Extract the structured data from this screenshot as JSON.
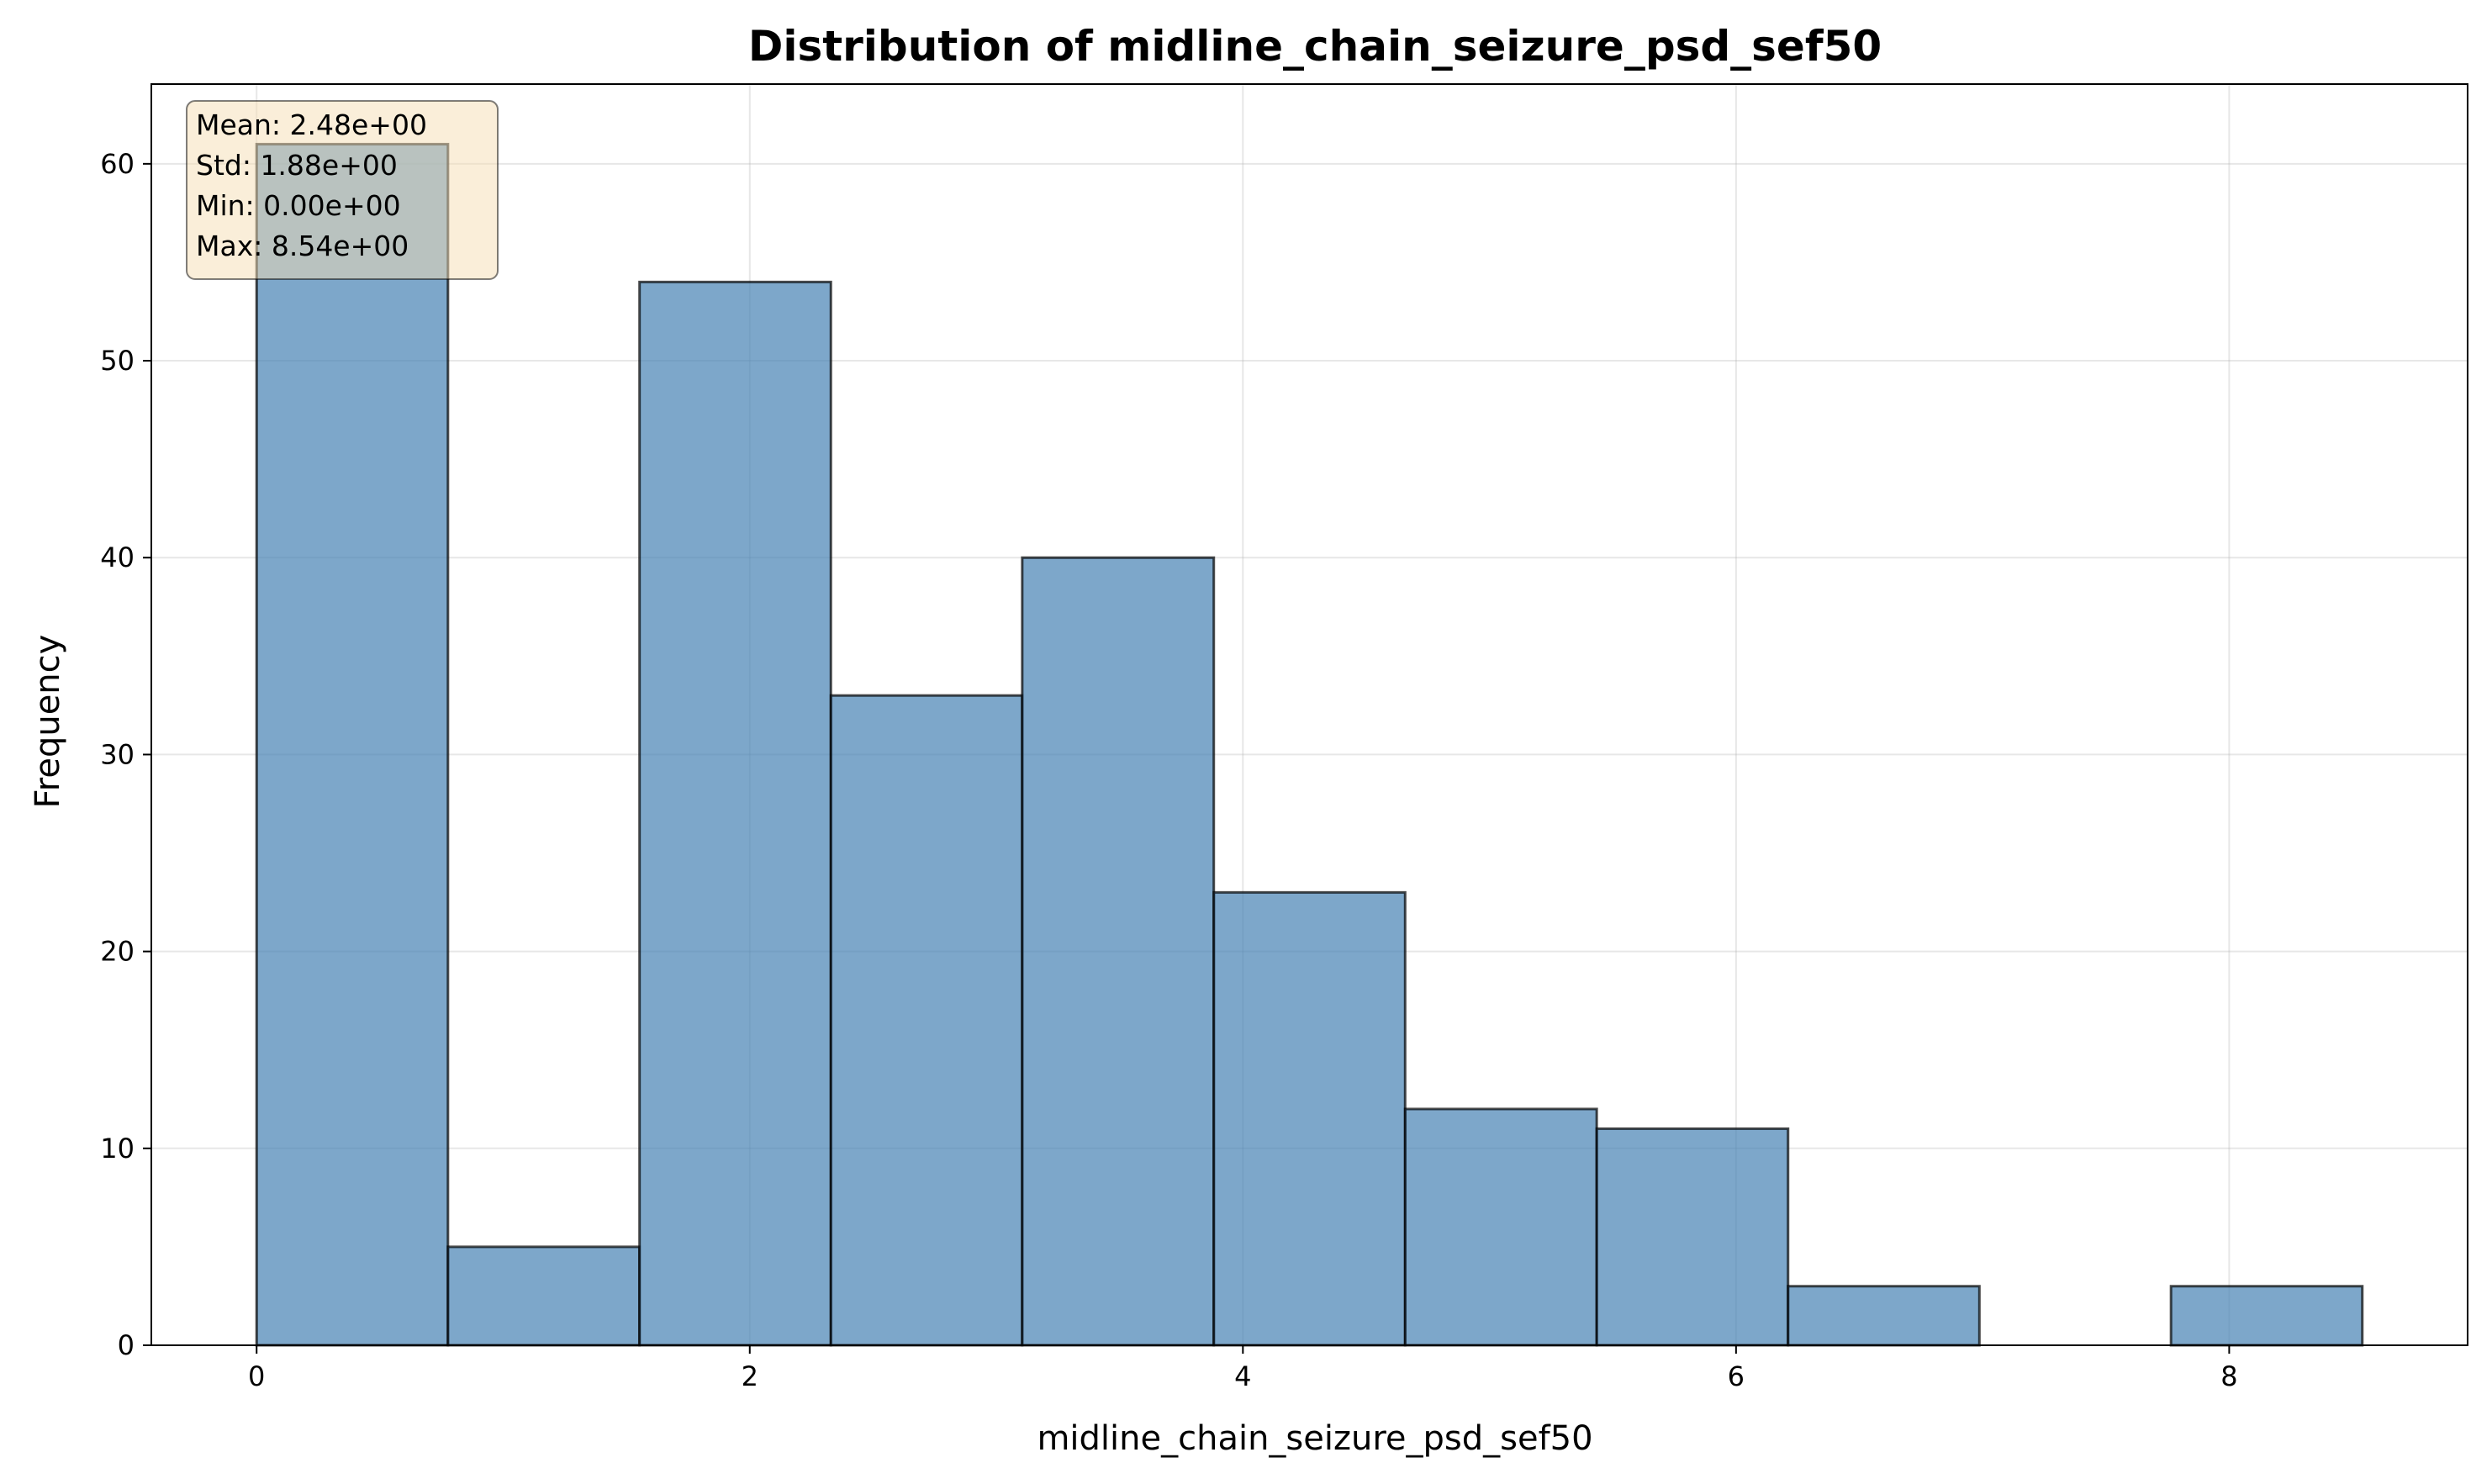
{
  "chart_data": {
    "type": "bar",
    "title": "Distribution of midline_chain_seizure_psd_sef50",
    "xlabel": "midline_chain_seizure_psd_sef50",
    "ylabel": "Frequency",
    "bins": [
      {
        "x0": 0.0,
        "x1": 0.776,
        "value": 61
      },
      {
        "x0": 0.776,
        "x1": 1.553,
        "value": 5
      },
      {
        "x0": 1.553,
        "x1": 2.329,
        "value": 54
      },
      {
        "x0": 2.329,
        "x1": 3.105,
        "value": 33
      },
      {
        "x0": 3.105,
        "x1": 3.882,
        "value": 40
      },
      {
        "x0": 3.882,
        "x1": 4.658,
        "value": 23
      },
      {
        "x0": 4.658,
        "x1": 5.435,
        "value": 12
      },
      {
        "x0": 5.435,
        "x1": 6.211,
        "value": 11
      },
      {
        "x0": 6.211,
        "x1": 6.987,
        "value": 3
      },
      {
        "x0": 6.987,
        "x1": 7.764,
        "value": 0
      },
      {
        "x0": 7.764,
        "x1": 8.54,
        "value": 3
      }
    ],
    "xlim": [
      -0.427,
      8.967
    ],
    "ylim": [
      0,
      64.05
    ],
    "xticks": [
      0,
      2,
      4,
      6,
      8
    ],
    "yticks": [
      0,
      10,
      20,
      30,
      40,
      50,
      60
    ],
    "grid": true,
    "bar_color": "#4682b4",
    "edge_color": "#000000",
    "stats": {
      "mean": "Mean: 2.48e+00",
      "std": "Std: 1.88e+00",
      "min": "Min: 0.00e+00",
      "max": "Max: 8.54e+00"
    }
  }
}
